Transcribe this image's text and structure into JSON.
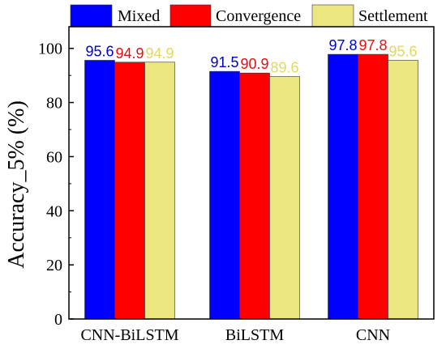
{
  "chart_data": {
    "type": "bar",
    "categories": [
      "CNN-BiLSTM",
      "BiLSTM",
      "CNN"
    ],
    "series": [
      {
        "name": "Mixed",
        "values": [
          95.6,
          91.5,
          97.8
        ],
        "color": "#0000ff",
        "label_color": "#0000cc"
      },
      {
        "name": "Convergence",
        "values": [
          94.9,
          90.9,
          97.8
        ],
        "color": "#ff0000",
        "label_color": "#e01010"
      },
      {
        "name": "Settlement",
        "values": [
          94.9,
          89.6,
          95.6
        ],
        "color": "#ece680",
        "label_color": "#e0d860"
      }
    ],
    "title": "",
    "xlabel": "",
    "ylabel": "Accuracy_5% (%)",
    "ylim": [
      0,
      108
    ],
    "yticks": [
      0,
      20,
      40,
      60,
      80,
      100
    ],
    "legend_position": "top",
    "grid": false
  }
}
